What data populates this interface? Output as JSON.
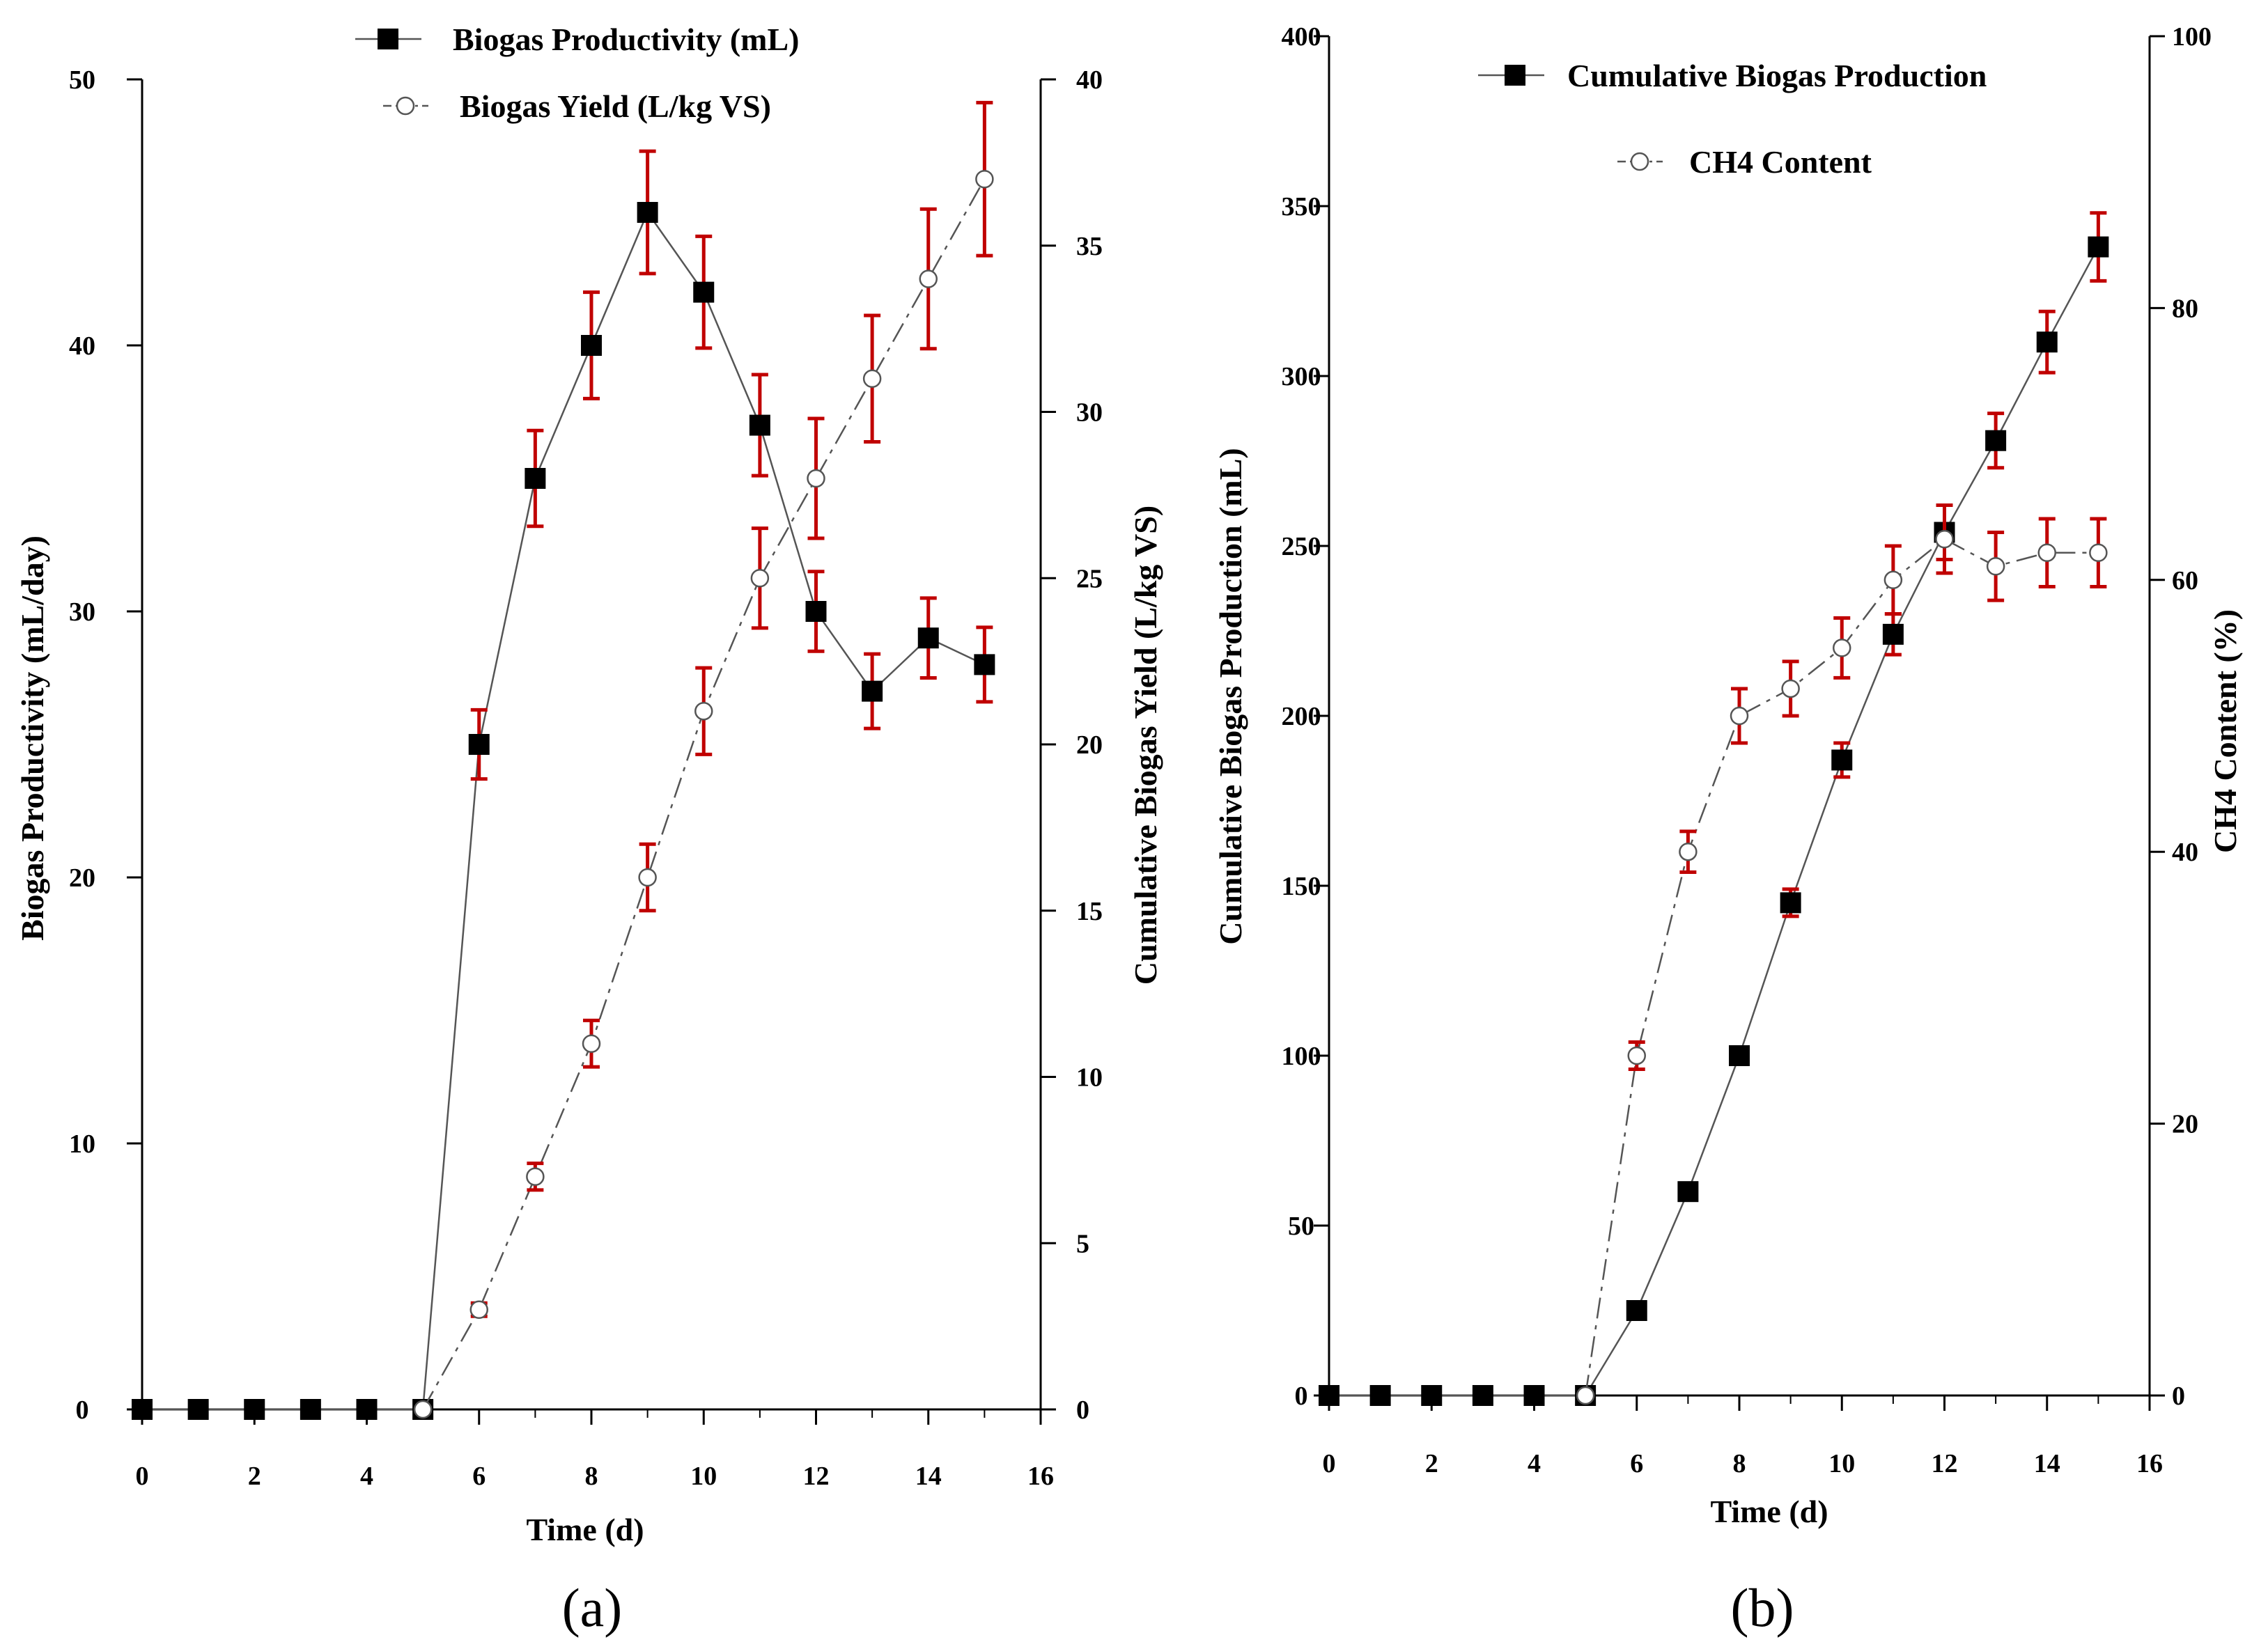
{
  "colors": {
    "axis": "#000000",
    "series": "#555555",
    "marker": "#000000",
    "error": "#c00000"
  },
  "chart_data": [
    {
      "type": "line",
      "panel_label": "(a)",
      "title": "",
      "xlabel": "Time (d)",
      "ylabel": "Biogas Productivity (mL/day)",
      "y2label": "Cumulative Biogas Yield (L/kg VS)",
      "xlim": [
        0,
        16
      ],
      "ylim": [
        0,
        50
      ],
      "y2lim": [
        0,
        40
      ],
      "x_ticks": [
        "0",
        "2",
        "4",
        "6",
        "8",
        "10",
        "12",
        "14",
        "16"
      ],
      "y_ticks": [
        "0",
        "10",
        "20",
        "30",
        "40",
        "50"
      ],
      "y2_ticks": [
        "0",
        "5",
        "10",
        "15",
        "20",
        "25",
        "30",
        "35",
        "40"
      ],
      "grid": false,
      "legend_position": "top",
      "series": [
        {
          "name": "Biogas Productivity (mL)",
          "axis": "left",
          "marker": "filled-square",
          "line": "solid",
          "x": [
            0,
            1,
            2,
            3,
            4,
            5,
            6,
            7,
            8,
            9,
            10,
            11,
            12,
            13,
            14,
            15
          ],
          "values": [
            0,
            0,
            0,
            0,
            0,
            0,
            25,
            35,
            40,
            45,
            42,
            37,
            30,
            27,
            29,
            28
          ],
          "errors": [
            0,
            0,
            0,
            0,
            0,
            0,
            1.3,
            1.8,
            2.0,
            2.3,
            2.1,
            1.9,
            1.5,
            1.4,
            1.5,
            1.4
          ]
        },
        {
          "name": "Biogas Yield (L/kg VS)",
          "axis": "right",
          "marker": "open-circle",
          "line": "dash-dot",
          "x": [
            5,
            6,
            7,
            8,
            9,
            10,
            11,
            12,
            13,
            14,
            15
          ],
          "values": [
            0,
            3,
            7,
            11,
            16,
            21,
            25,
            28,
            31,
            34,
            37
          ],
          "errors": [
            0,
            0.2,
            0.4,
            0.7,
            1.0,
            1.3,
            1.5,
            1.8,
            1.9,
            2.1,
            2.3
          ]
        }
      ]
    },
    {
      "type": "line",
      "panel_label": "(b)",
      "title": "",
      "xlabel": "Time (d)",
      "ylabel": "Cumulative Biogas Production (mL)",
      "y2label": "CH4 Content (%)",
      "xlim": [
        0,
        16
      ],
      "ylim": [
        0,
        400
      ],
      "y2lim": [
        0,
        100
      ],
      "x_ticks": [
        "0",
        "2",
        "4",
        "6",
        "8",
        "10",
        "12",
        "14",
        "16"
      ],
      "y_ticks": [
        "0",
        "50",
        "100",
        "150",
        "200",
        "250",
        "300",
        "350",
        "400"
      ],
      "y2_ticks": [
        "0",
        "20",
        "40",
        "60",
        "80",
        "100"
      ],
      "grid": false,
      "legend_position": "top",
      "series": [
        {
          "name": "Cumulative Biogas Production",
          "axis": "left",
          "marker": "filled-square",
          "line": "solid",
          "x": [
            0,
            1,
            2,
            3,
            4,
            5,
            6,
            7,
            8,
            9,
            10,
            11,
            12,
            13,
            14,
            15
          ],
          "values": [
            0,
            0,
            0,
            0,
            0,
            0,
            25,
            60,
            100,
            145,
            187,
            224,
            254,
            281,
            310,
            338
          ],
          "errors": [
            0,
            0,
            0,
            0,
            0,
            0,
            0,
            0,
            2,
            4,
            5,
            6,
            8,
            8,
            9,
            10
          ]
        },
        {
          "name": "CH4 Content",
          "axis": "right",
          "marker": "open-circle",
          "line": "dash-dot",
          "x": [
            5,
            6,
            7,
            8,
            9,
            10,
            11,
            12,
            13,
            14,
            15
          ],
          "values": [
            0,
            25,
            40,
            50,
            52,
            55,
            60,
            63,
            61,
            62,
            62
          ],
          "errors": [
            0,
            1,
            1.5,
            2,
            2,
            2.2,
            2.5,
            2.5,
            2.5,
            2.5,
            2.5
          ]
        }
      ]
    }
  ]
}
